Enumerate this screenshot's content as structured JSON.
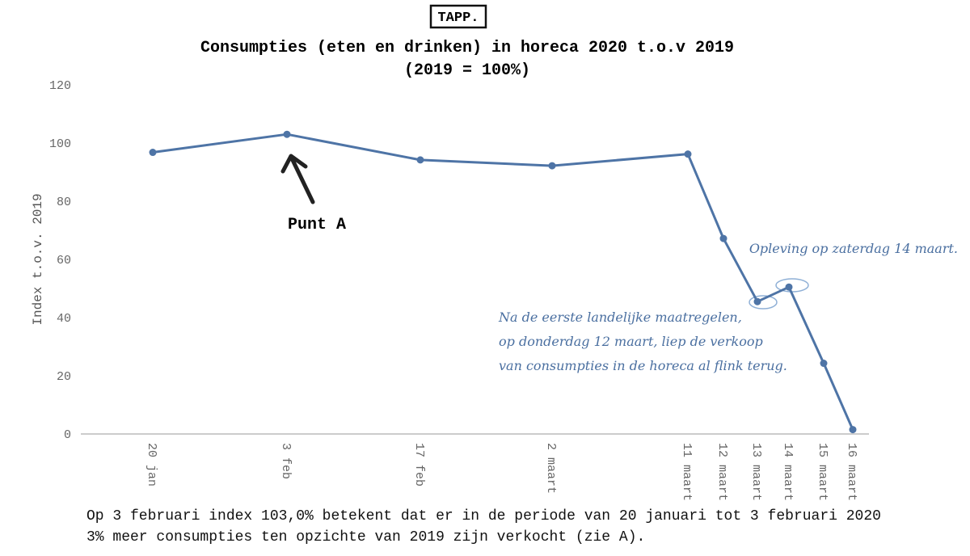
{
  "logo": "TAPP.",
  "chart_data": {
    "type": "line",
    "title": "Consumpties (eten en drinken) in horeca 2020 t.o.v 2019",
    "subtitle": "(2019 = 100%)",
    "y_label": "Index t.o.v. 2019",
    "categories": [
      "20 jan",
      "3 feb",
      "17 feb",
      "2 maart",
      "11 maart",
      "12 maart",
      "13 maart",
      "14 maart",
      "15 maart",
      "16 maart"
    ],
    "series": [
      {
        "name": "Index",
        "color": "#4e74a6",
        "values": [
          96.8,
          103.0,
          94.2,
          92.2,
          96.2,
          67.2,
          45.5,
          50.5,
          24.3,
          1.5
        ]
      }
    ],
    "ylim": [
      0,
      120
    ],
    "yticks": [
      0,
      20,
      40,
      60,
      80,
      100,
      120
    ],
    "grid": false,
    "annotations": [
      "Punt A",
      "Opleving op zaterdag 14 maart.",
      [
        "Na de eerste landelijke maatregelen,",
        "op donderdag 12 maart, liep de verkoop",
        "van consumpties in de horeca al flink terug."
      ]
    ]
  },
  "footnote": "Op 3 februari index 103,0% betekent dat er in de periode van 20 januari tot 3 februari 2020 3% meer consumpties ten opzichte van 2019 zijn verkocht (zie A)."
}
